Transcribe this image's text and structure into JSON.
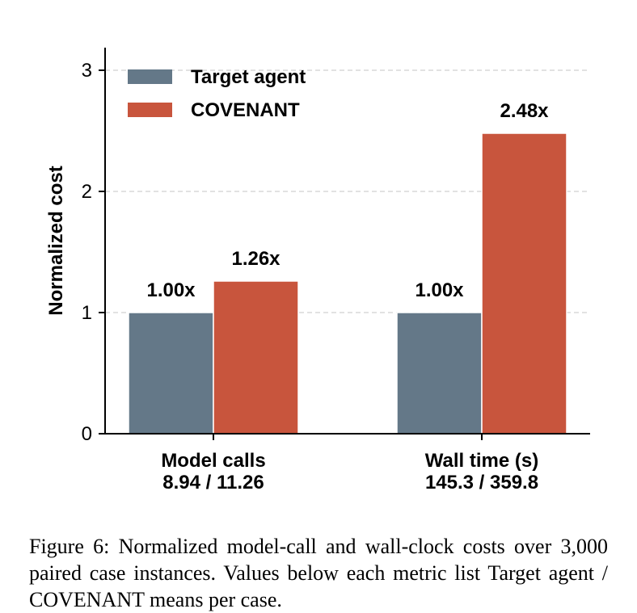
{
  "chart_data": {
    "type": "bar",
    "categories": [
      "Model calls",
      "Wall time (s)"
    ],
    "category_sublabels": [
      "8.94 / 11.26",
      "145.3 / 359.8"
    ],
    "series": [
      {
        "name": "Target agent",
        "values": [
          1.0,
          1.0
        ],
        "labels": [
          "1.00x",
          "1.00x"
        ],
        "color": "#647888"
      },
      {
        "name": "COVENANT",
        "values": [
          1.26,
          2.48
        ],
        "labels": [
          "1.26x",
          "2.48x"
        ],
        "color": "#c8553d"
      }
    ],
    "ylabel": "Normalized cost",
    "xlabel": "",
    "ylim": [
      0,
      3.2
    ],
    "yticks": [
      0,
      1,
      2,
      3
    ],
    "grid": "horizontal dashed",
    "legend": "top-left"
  },
  "caption": "Figure 6: Normalized model-call and wall-clock costs over 3,000 paired case instances. Values below each metric list Target agent / COVENANT means per case."
}
